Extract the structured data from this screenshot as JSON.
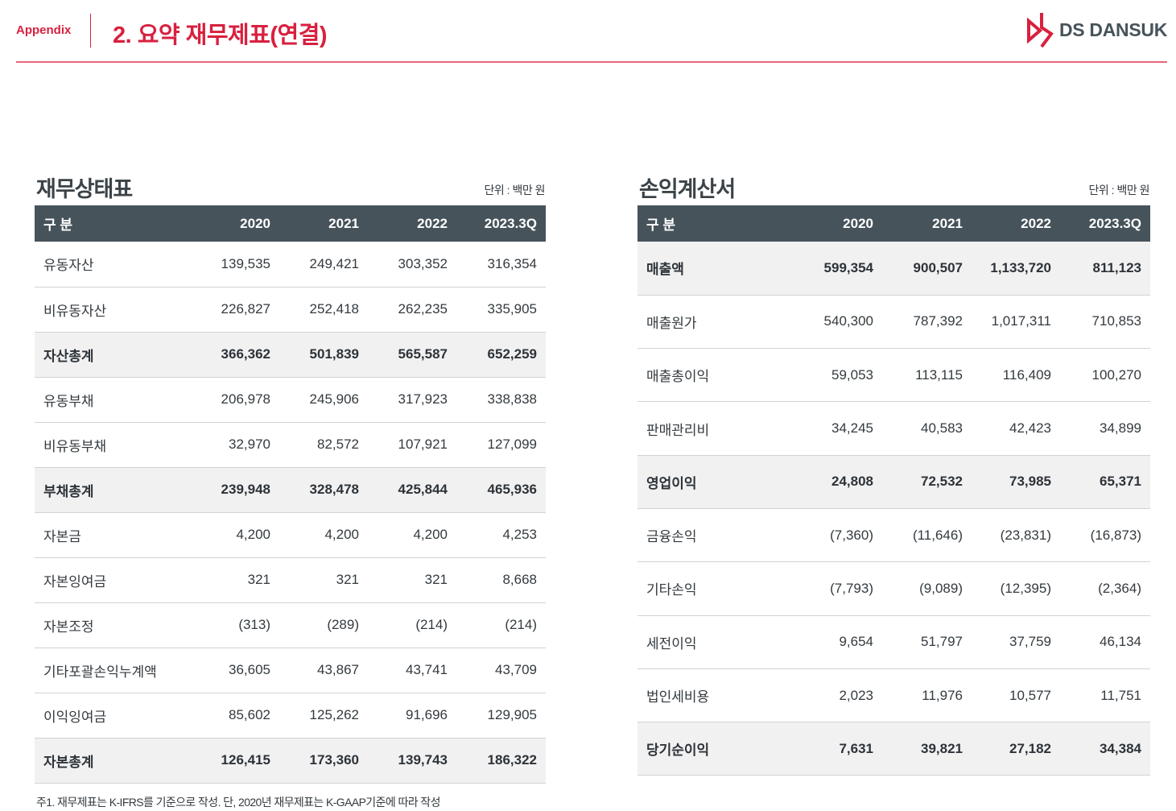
{
  "header": {
    "appendix": "Appendix",
    "title": "2. 요약 재무제표(연결)",
    "logo_text": "DS DANSUK"
  },
  "colors": {
    "accent": "#d8203f",
    "header_row": "#46535b",
    "total_row": "#f1f1f2"
  },
  "balance_sheet": {
    "title": "재무상태표",
    "unit": "단위 : 백만 원",
    "columns": [
      "구 분",
      "2020",
      "2021",
      "2022",
      "2023.3Q"
    ],
    "rows": [
      {
        "label": "유동자산",
        "values": [
          "139,535",
          "249,421",
          "303,352",
          "316,354"
        ],
        "total": false
      },
      {
        "label": "비유동자산",
        "values": [
          "226,827",
          "252,418",
          "262,235",
          "335,905"
        ],
        "total": false
      },
      {
        "label": "자산총계",
        "values": [
          "366,362",
          "501,839",
          "565,587",
          "652,259"
        ],
        "total": true
      },
      {
        "label": "유동부채",
        "values": [
          "206,978",
          "245,906",
          "317,923",
          "338,838"
        ],
        "total": false
      },
      {
        "label": "비유동부채",
        "values": [
          "32,970",
          "82,572",
          "107,921",
          "127,099"
        ],
        "total": false
      },
      {
        "label": "부채총계",
        "values": [
          "239,948",
          "328,478",
          "425,844",
          "465,936"
        ],
        "total": true
      },
      {
        "label": "자본금",
        "values": [
          "4,200",
          "4,200",
          "4,200",
          "4,253"
        ],
        "total": false
      },
      {
        "label": "자본잉여금",
        "values": [
          "321",
          "321",
          "321",
          "8,668"
        ],
        "total": false
      },
      {
        "label": "자본조정",
        "values": [
          "(313)",
          "(289)",
          "(214)",
          "(214)"
        ],
        "total": false
      },
      {
        "label": "기타포괄손익누계액",
        "values": [
          "36,605",
          "43,867",
          "43,741",
          "43,709"
        ],
        "total": false
      },
      {
        "label": "이익잉여금",
        "values": [
          "85,602",
          "125,262",
          "91,696",
          "129,905"
        ],
        "total": false
      },
      {
        "label": "자본총계",
        "values": [
          "126,415",
          "173,360",
          "139,743",
          "186,322"
        ],
        "total": true
      }
    ]
  },
  "income_statement": {
    "title": "손익계산서",
    "unit": "단위 : 백만 원",
    "columns": [
      "구 분",
      "2020",
      "2021",
      "2022",
      "2023.3Q"
    ],
    "rows": [
      {
        "label": "매출액",
        "values": [
          "599,354",
          "900,507",
          "1,133,720",
          "811,123"
        ],
        "total": true
      },
      {
        "label": "매출원가",
        "values": [
          "540,300",
          "787,392",
          "1,017,311",
          "710,853"
        ],
        "total": false
      },
      {
        "label": "매출총이익",
        "values": [
          "59,053",
          "113,115",
          "116,409",
          "100,270"
        ],
        "total": false
      },
      {
        "label": "판매관리비",
        "values": [
          "34,245",
          "40,583",
          "42,423",
          "34,899"
        ],
        "total": false
      },
      {
        "label": "영업이익",
        "values": [
          "24,808",
          "72,532",
          "73,985",
          "65,371"
        ],
        "total": true
      },
      {
        "label": "금융손익",
        "values": [
          "(7,360)",
          "(11,646)",
          "(23,831)",
          "(16,873)"
        ],
        "total": false
      },
      {
        "label": "기타손익",
        "values": [
          "(7,793)",
          "(9,089)",
          "(12,395)",
          "(2,364)"
        ],
        "total": false
      },
      {
        "label": "세전이익",
        "values": [
          "9,654",
          "51,797",
          "37,759",
          "46,134"
        ],
        "total": false
      },
      {
        "label": "법인세비용",
        "values": [
          "2,023",
          "11,976",
          "10,577",
          "11,751"
        ],
        "total": false
      },
      {
        "label": "당기순이익",
        "values": [
          "7,631",
          "39,821",
          "27,182",
          "34,384"
        ],
        "total": true
      }
    ]
  },
  "footnote": "주1. 재무제표는 K-IFRS를 기준으로 작성. 단, 2020년 재무제표는 K-GAAP기준에 따라 작성"
}
